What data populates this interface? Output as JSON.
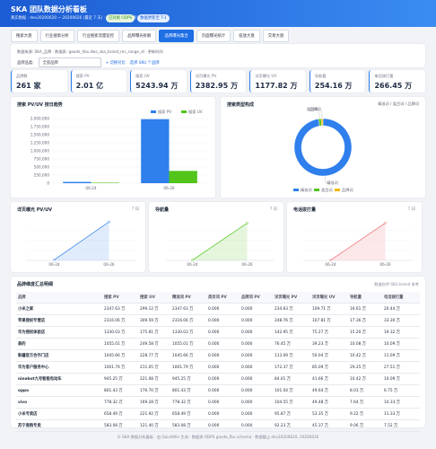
{
  "header": {
    "title": "SKA 团队数据分析看板",
    "subtitle": "真实数据 · dev20200620 ~ 20200626 (最近 7 天) · 跨域大盘数据分析",
    "badges": [
      "已对接 ODPS",
      "数据更新至 T-1"
    ]
  },
  "tabs": {
    "items": [
      "搜索大盘",
      "行业搜索分析",
      "行业搜索流量监控",
      "品牌曝光拆解",
      "品牌曝光集合",
      "页面曝光统计",
      "投放大盘",
      "交易大盘"
    ],
    "active": 4
  },
  "filters": {
    "source": "数据来源: SKA_品牌 · 数据表: gaode_hbs.dws_ska_brand_mc_range_di · 更新时间",
    "label": "品牌品类:",
    "select": "全部品牌",
    "compare": "+ 切换对比",
    "hint": "选择 SKU 个品牌"
  },
  "kpis": [
    {
      "label": "品牌数",
      "value": "261 家"
    },
    {
      "label": "搜索 PV",
      "value": "2.01 亿"
    },
    {
      "label": "搜索 UV",
      "value": "5243.94 万"
    },
    {
      "label": "详页曝光 PV",
      "value": "2382.95 万"
    },
    {
      "label": "详页曝光 UV",
      "value": "1177.82 万"
    },
    {
      "label": "导航量",
      "value": "254.16 万"
    },
    {
      "label": "电话拨打量",
      "value": "266.45 万"
    }
  ],
  "chart_data": [
    {
      "type": "bar",
      "title": "搜索 PV/UV 按日趋势",
      "categories": [
        "06-24",
        "06-26"
      ],
      "series": [
        {
          "name": "搜索 PV",
          "color": "#2f7fed",
          "values": [
            40000,
            1980000
          ]
        },
        {
          "name": "搜索 UV",
          "color": "#52c41a",
          "values": [
            15000,
            380000
          ]
        }
      ],
      "ylim": [
        0,
        2000000
      ],
      "yticks": [
        0,
        {
          "value": 250000,
          "label": "250,000"
        },
        {
          "value": 500000,
          "label": "500,000"
        },
        {
          "value": 750000,
          "label": "750,000"
        },
        {
          "value": 1000000,
          "label": "1,000,000"
        },
        {
          "value": 1250000,
          "label": "1,250,000"
        },
        {
          "value": 1500000,
          "label": "1,500,000"
        },
        {
          "value": 1750000,
          "label": "1,750,000"
        },
        {
          "value": 2000000,
          "label": "2,000,000"
        }
      ],
      "grid": true
    },
    {
      "type": "pie",
      "title": "搜索类型构成",
      "subtitle": "精准词 / 类目词 / 品牌词",
      "categories": [
        "精准词",
        "类目词",
        "品牌词"
      ],
      "values": [
        97.5,
        1.5,
        1.0
      ],
      "colors": [
        "#2f7fed",
        "#52c41a",
        "#f5b90f"
      ]
    },
    {
      "type": "line",
      "title": "详页曝光 PV/UV",
      "tag": "7 日",
      "categories": [
        "06-24",
        "06-26"
      ],
      "values": [
        40000,
        2382950
      ],
      "color": "#2f7fed",
      "ylim": [
        0,
        2500000
      ]
    },
    {
      "type": "line",
      "title": "导航量",
      "tag": "7 日",
      "categories": [
        "06-24",
        "06-26"
      ],
      "values": [
        20000,
        2400000
      ],
      "color": "#52c41a",
      "ylim": [
        0,
        2600000
      ]
    },
    {
      "type": "line",
      "title": "电话拨打量",
      "tag": "7 日",
      "categories": [
        "06-24",
        "06-26"
      ],
      "values": [
        15000,
        2500000
      ],
      "color": "#f0626a",
      "ylim": [
        0,
        2700000
      ]
    }
  ],
  "table": {
    "title": "品牌维度汇总明细",
    "note": "数据仅供 SKU brand 参考",
    "columns": [
      "品牌",
      "搜索 PV",
      "搜索 UV",
      "精准词 PV",
      "类目词 PV",
      "品牌词 PV",
      "详页曝光 PV",
      "详页曝光 UV",
      "导航量",
      "电话拨打量"
    ],
    "rows": [
      [
        "小米之家",
        "2347.63 万",
        "299.12 万",
        "2347.63 万",
        "0.000",
        "0.000",
        "234.63 万",
        "109.71 万",
        "16.61 万",
        "20.44 万"
      ],
      [
        "苹果授权专营店",
        "2316.06 万",
        "309.59 万",
        "2316.06 万",
        "0.000",
        "0.000",
        "248.76 万",
        "107.81 万",
        "17.36 万",
        "33.30 万"
      ],
      [
        "华为授权体验店",
        "1330.03 万",
        "175.81 万",
        "1330.03 万",
        "0.000",
        "0.000",
        "142.95 万",
        "75.27 万",
        "15.20 万",
        "19.32 万"
      ],
      [
        "美的",
        "1055.01 万",
        "249.58 万",
        "1055.01 万",
        "0.000",
        "0.000",
        "76.45 万",
        "39.23 万",
        "10.08 万",
        "10.09 万"
      ],
      [
        "新疆官方合作门店",
        "1045.66 万",
        "228.77 万",
        "1045.66 万",
        "0.000",
        "0.000",
        "113.09 万",
        "50.04 万",
        "10.42 万",
        "11.09 万"
      ],
      [
        "华为客户服务中心",
        "1001.79 万",
        "211.05 万",
        "1001.79 万",
        "0.000",
        "0.000",
        "172.37 万",
        "85.09 万",
        "29.25 万",
        "27.51 万"
      ],
      [
        "ninebot九号智能电动车",
        "945.25 万",
        "221.08 万",
        "945.25 万",
        "0.000",
        "0.000",
        "84.01 万",
        "41.66 万",
        "10.42 万",
        "10.09 万"
      ],
      [
        "oppo",
        "801.43 万",
        "176.70 万",
        "801.43 万",
        "0.000",
        "0.000",
        "101.04 万",
        "49.64 万",
        "8.03 万",
        "6.75 万"
      ],
      [
        "vivo",
        "778.32 万",
        "169.28 万",
        "778.32 万",
        "0.000",
        "0.000",
        "104.55 万",
        "49.48 万",
        "7.64 万",
        "10.33 万"
      ],
      [
        "小米专卖店",
        "658.49 万",
        "221.92 万",
        "658.49 万",
        "0.000",
        "0.000",
        "95.87 万",
        "53.35 万",
        "9.22 万",
        "11.33 万"
      ],
      [
        "苏宁易购专卖",
        "583.08 万",
        "121.40 万",
        "583.08 万",
        "0.000",
        "0.000",
        "92.23 万",
        "45.37 万",
        "9.06 万",
        "7.52 万"
      ]
    ]
  },
  "footer": "© SKA 数据分析看板 · 由 QuickWin 生成 · 数据源 ODPS gaode_fbu schema · 数据截止 dev20200620, 20200626"
}
